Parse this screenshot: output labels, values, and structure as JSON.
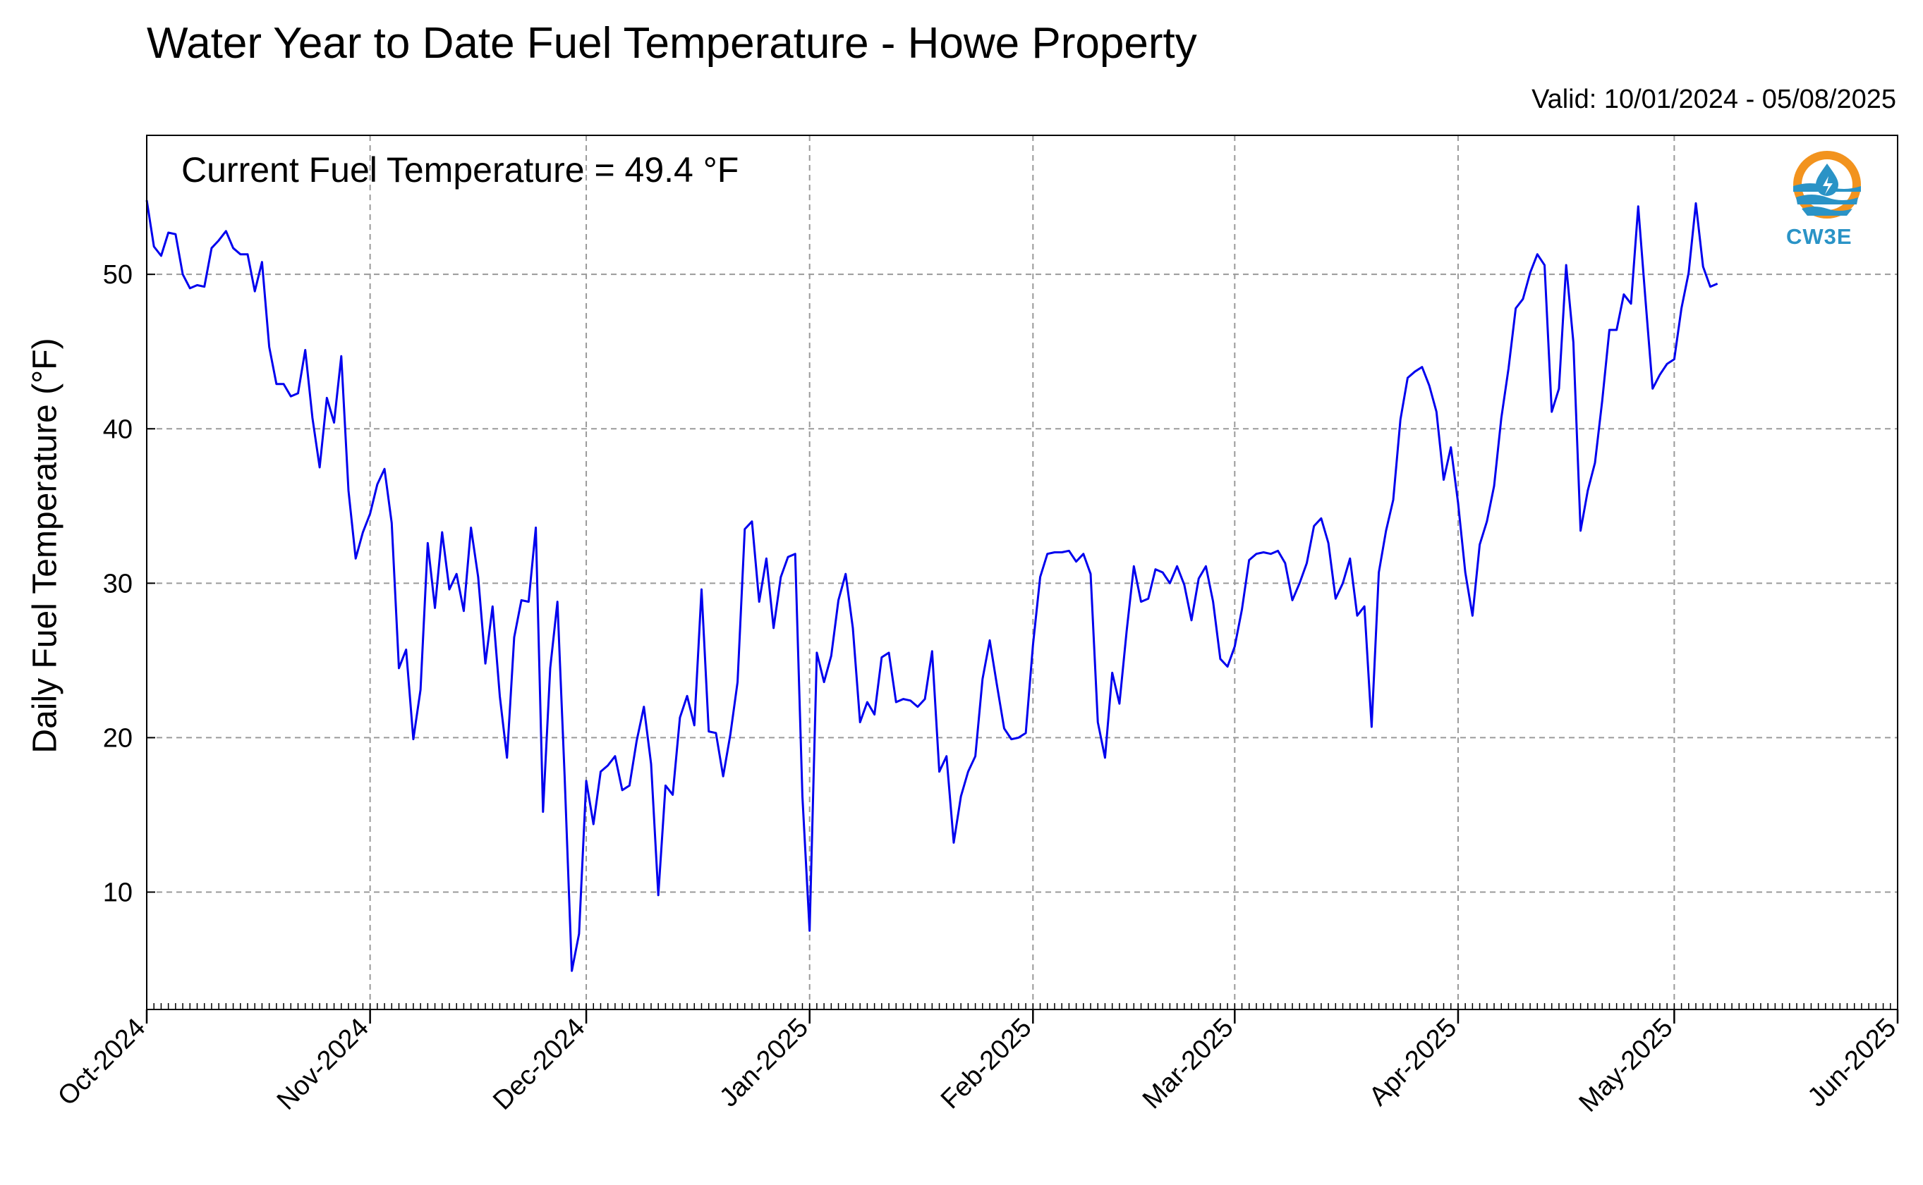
{
  "title": "Water Year to Date Fuel Temperature - Howe Property",
  "valid_text": "Valid: 10/01/2024 - 05/08/2025",
  "current_text": "Current Fuel Temperature = 49.4 °F",
  "logo_text": "CW3E",
  "chart_data": {
    "type": "line",
    "ylabel": "Daily Fuel Temperature (°F)",
    "x_start": "2024-10-01",
    "xlim": [
      "2024-10-01",
      "2025-06-01"
    ],
    "ylim": [
      2.4,
      59
    ],
    "yticks": [
      10,
      20,
      30,
      40,
      50
    ],
    "xticks": [
      "Oct-2024",
      "Nov-2024",
      "Dec-2024",
      "Jan-2025",
      "Feb-2025",
      "Mar-2025",
      "Apr-2025",
      "May-2025",
      "Jun-2025"
    ],
    "grid": true,
    "color": "#0000ee",
    "values": [
      54.8,
      51.8,
      51.2,
      52.7,
      52.6,
      50.0,
      49.1,
      49.3,
      49.2,
      51.7,
      52.2,
      52.8,
      51.7,
      51.3,
      51.3,
      48.9,
      50.8,
      45.3,
      42.9,
      42.9,
      42.1,
      42.3,
      45.1,
      40.7,
      37.5,
      42.0,
      40.4,
      44.7,
      36.0,
      31.6,
      33.3,
      34.5,
      36.4,
      37.4,
      33.9,
      24.5,
      25.7,
      19.9,
      23.1,
      32.6,
      28.4,
      33.3,
      29.6,
      30.6,
      28.2,
      33.6,
      30.4,
      24.8,
      28.5,
      22.7,
      18.7,
      26.5,
      28.9,
      28.8,
      33.6,
      15.2,
      24.5,
      28.8,
      17.5,
      4.9,
      7.3,
      17.2,
      14.4,
      17.8,
      18.2,
      18.8,
      16.6,
      16.9,
      19.8,
      22.0,
      18.3,
      9.8,
      16.9,
      16.3,
      21.3,
      22.7,
      20.8,
      29.6,
      20.4,
      20.3,
      17.5,
      20.2,
      23.6,
      33.5,
      34.0,
      28.8,
      31.6,
      27.1,
      30.4,
      31.7,
      31.9,
      16.2,
      7.5,
      25.5,
      23.6,
      25.3,
      28.9,
      30.6,
      27.1,
      21.0,
      22.3,
      21.5,
      25.2,
      25.5,
      22.3,
      22.5,
      22.4,
      22.0,
      22.5,
      25.6,
      17.8,
      18.8,
      13.2,
      16.2,
      17.8,
      18.8,
      23.8,
      26.3,
      23.4,
      20.6,
      19.9,
      20.0,
      20.3,
      26.0,
      30.4,
      31.9,
      32.0,
      32.0,
      32.1,
      31.4,
      31.9,
      30.6,
      21.0,
      18.7,
      24.2,
      22.2,
      26.9,
      31.1,
      28.8,
      29.0,
      30.9,
      30.7,
      30.0,
      31.1,
      29.9,
      27.6,
      30.3,
      31.1,
      28.8,
      25.1,
      24.6,
      25.9,
      28.3,
      31.5,
      31.9,
      32.0,
      31.9,
      32.1,
      31.3,
      28.9,
      30.0,
      31.3,
      33.7,
      34.2,
      32.6,
      29.0,
      30.0,
      31.6,
      27.9,
      28.5,
      20.7,
      30.7,
      33.4,
      35.4,
      40.6,
      43.3,
      43.7,
      44.0,
      42.8,
      41.1,
      36.7,
      38.8,
      35.2,
      30.7,
      27.9,
      32.5,
      34.0,
      36.3,
      40.7,
      43.9,
      47.8,
      48.4,
      50.1,
      51.3,
      50.6,
      41.1,
      42.6,
      50.6,
      45.6,
      33.4,
      36.0,
      37.8,
      41.8,
      46.4,
      46.4,
      48.7,
      48.1,
      54.4,
      48.4,
      42.6,
      43.5,
      44.2,
      44.5,
      47.8,
      50.1,
      54.6,
      50.5,
      49.2,
      49.4
    ]
  }
}
